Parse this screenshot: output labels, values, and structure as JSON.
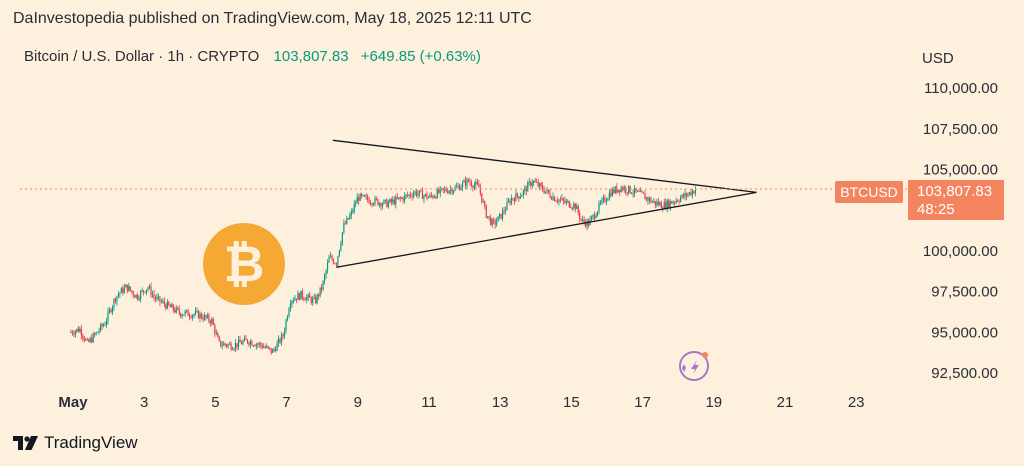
{
  "header": {
    "publisher_line": "DaInvestopedia published on TradingView.com, May 18, 2025 12:11 UTC",
    "symbol_name": "Bitcoin / U.S. Dollar · 1h · CRYPTO",
    "last_price": "103,807.83",
    "change": "+649.85 (+0.63%)"
  },
  "axis": {
    "currency": "USD"
  },
  "price_label": {
    "ticker": "BTCUSD",
    "price": "103,807.83",
    "countdown": "48:25"
  },
  "brand": {
    "name": "TradingView"
  },
  "colors": {
    "background": "#fdf0dc",
    "up_candle": "#089981",
    "down_candle": "#f23645",
    "price_label": "#f4845f",
    "bitcoin_logo": "#f5a833",
    "trendline": "#131722"
  },
  "icons": [
    "bitcoin-logo",
    "sparkle-icon",
    "tradingview-logo"
  ],
  "chart_data": {
    "type": "candlestick",
    "symbol": "BTCUSD",
    "interval": "1h",
    "y_ticks": [
      110000,
      107500,
      105000,
      100000,
      97500,
      95000,
      92500
    ],
    "y_tick_labels": [
      "110,000.00",
      "107,500.00",
      "105,000.00",
      "100,000.00",
      "97,500.00",
      "95,000.00",
      "92,500.00"
    ],
    "x_tick_labels": [
      "May",
      "3",
      "5",
      "7",
      "9",
      "11",
      "13",
      "15",
      "17",
      "19",
      "21",
      "23"
    ],
    "x_tick_days": [
      1,
      3,
      5,
      7,
      9,
      11,
      13,
      15,
      17,
      19,
      21,
      23
    ],
    "last_price": 103807.83,
    "close_path": [
      {
        "day": 0.9,
        "price": 95000
      },
      {
        "day": 1.2,
        "price": 95200
      },
      {
        "day": 1.4,
        "price": 94300
      },
      {
        "day": 1.6,
        "price": 94800
      },
      {
        "day": 1.9,
        "price": 95600
      },
      {
        "day": 2.2,
        "price": 97200
      },
      {
        "day": 2.5,
        "price": 97800
      },
      {
        "day": 2.8,
        "price": 97200
      },
      {
        "day": 3.1,
        "price": 97800
      },
      {
        "day": 3.3,
        "price": 97100
      },
      {
        "day": 3.6,
        "price": 96700
      },
      {
        "day": 4.0,
        "price": 96200
      },
      {
        "day": 4.5,
        "price": 96100
      },
      {
        "day": 4.9,
        "price": 95700
      },
      {
        "day": 5.1,
        "price": 94300
      },
      {
        "day": 5.5,
        "price": 94200
      },
      {
        "day": 5.9,
        "price": 94500
      },
      {
        "day": 6.3,
        "price": 94200
      },
      {
        "day": 6.6,
        "price": 93800
      },
      {
        "day": 6.9,
        "price": 94800
      },
      {
        "day": 7.1,
        "price": 97000
      },
      {
        "day": 7.4,
        "price": 97300
      },
      {
        "day": 7.8,
        "price": 96900
      },
      {
        "day": 8.0,
        "price": 97800
      },
      {
        "day": 8.2,
        "price": 99600
      },
      {
        "day": 8.4,
        "price": 99300
      },
      {
        "day": 8.6,
        "price": 101500
      },
      {
        "day": 8.8,
        "price": 102200
      },
      {
        "day": 9.0,
        "price": 103300
      },
      {
        "day": 9.4,
        "price": 103100
      },
      {
        "day": 9.8,
        "price": 102900
      },
      {
        "day": 10.2,
        "price": 103200
      },
      {
        "day": 10.6,
        "price": 103600
      },
      {
        "day": 11.0,
        "price": 103300
      },
      {
        "day": 11.4,
        "price": 103700
      },
      {
        "day": 11.8,
        "price": 103900
      },
      {
        "day": 12.1,
        "price": 104300
      },
      {
        "day": 12.4,
        "price": 103900
      },
      {
        "day": 12.6,
        "price": 102300
      },
      {
        "day": 12.8,
        "price": 101600
      },
      {
        "day": 13.0,
        "price": 102100
      },
      {
        "day": 13.3,
        "price": 103200
      },
      {
        "day": 13.6,
        "price": 103500
      },
      {
        "day": 13.9,
        "price": 104300
      },
      {
        "day": 14.2,
        "price": 103800
      },
      {
        "day": 14.5,
        "price": 103300
      },
      {
        "day": 14.8,
        "price": 103000
      },
      {
        "day": 15.1,
        "price": 102800
      },
      {
        "day": 15.3,
        "price": 101800
      },
      {
        "day": 15.5,
        "price": 101700
      },
      {
        "day": 15.8,
        "price": 102800
      },
      {
        "day": 16.1,
        "price": 103600
      },
      {
        "day": 16.4,
        "price": 103900
      },
      {
        "day": 16.7,
        "price": 103700
      },
      {
        "day": 17.0,
        "price": 103400
      },
      {
        "day": 17.3,
        "price": 103000
      },
      {
        "day": 17.6,
        "price": 102800
      },
      {
        "day": 17.9,
        "price": 103100
      },
      {
        "day": 18.2,
        "price": 103400
      },
      {
        "day": 18.5,
        "price": 103800
      }
    ],
    "annotations": [
      {
        "type": "trendline",
        "label": "upper",
        "points": [
          {
            "day": 8.3,
            "price": 106800
          },
          {
            "day": 20.2,
            "price": 103600
          }
        ]
      },
      {
        "type": "trendline",
        "label": "lower",
        "points": [
          {
            "day": 8.4,
            "price": 99000
          },
          {
            "day": 20.2,
            "price": 103600
          }
        ]
      }
    ]
  }
}
